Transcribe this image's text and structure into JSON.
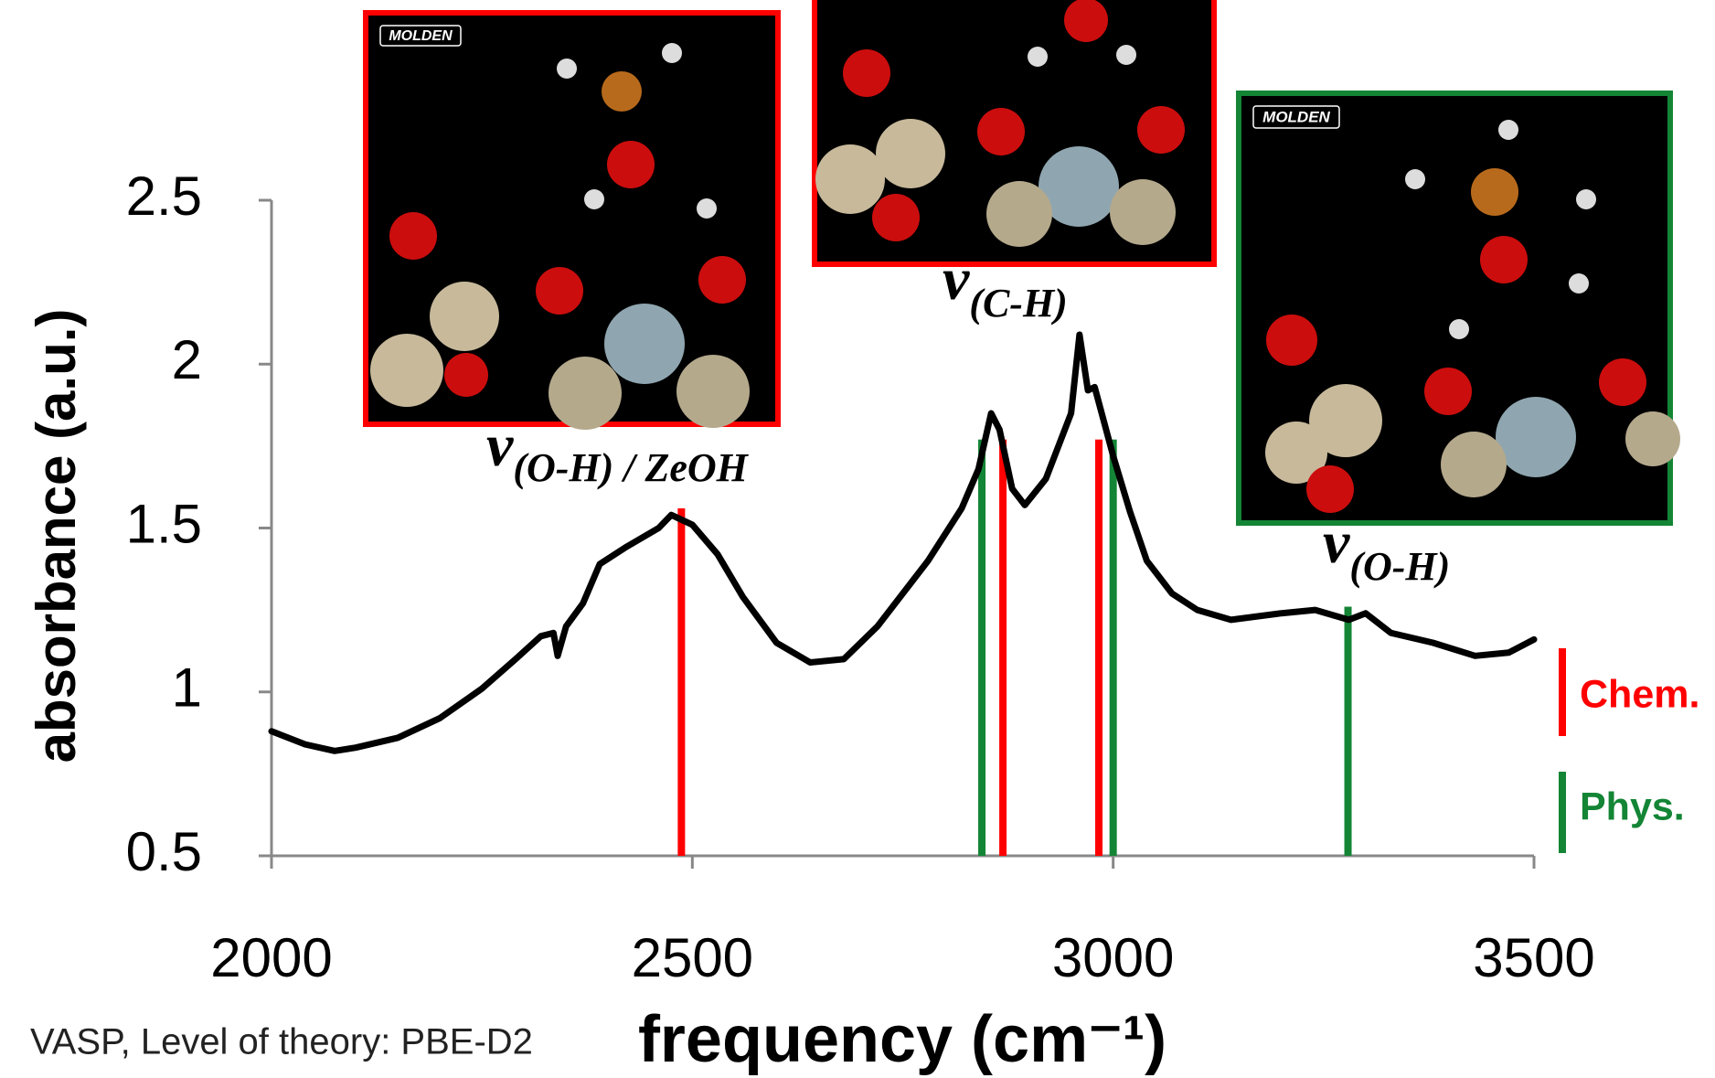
{
  "chart_data": {
    "type": "line",
    "x_label": "frequency (cm⁻¹)",
    "y_label": "absorbance (a.u.)",
    "footnote": "VASP, Level of theory: PBE-D2",
    "xlim": [
      2000,
      3500
    ],
    "ylim": [
      0.5,
      2.5
    ],
    "xticks": [
      2000,
      2500,
      3000,
      3500
    ],
    "yticks": [
      0.5,
      1,
      1.5,
      2,
      2.5
    ],
    "series": [
      {
        "color": "#000000",
        "x": [
          2000,
          2040,
          2075,
          2100,
          2150,
          2200,
          2250,
          2290,
          2320,
          2335,
          2340,
          2350,
          2370,
          2390,
          2420,
          2460,
          2475,
          2500,
          2530,
          2560,
          2600,
          2640,
          2680,
          2720,
          2780,
          2820,
          2840,
          2855,
          2865,
          2880,
          2895,
          2920,
          2950,
          2960,
          2970,
          2978,
          3000,
          3020,
          3040,
          3070,
          3100,
          3140,
          3200,
          3240,
          3280,
          3300,
          3330,
          3380,
          3430,
          3470,
          3500
        ],
        "values": [
          0.88,
          0.84,
          0.82,
          0.83,
          0.86,
          0.92,
          1.01,
          1.1,
          1.17,
          1.18,
          1.11,
          1.2,
          1.27,
          1.39,
          1.44,
          1.5,
          1.54,
          1.51,
          1.42,
          1.29,
          1.15,
          1.09,
          1.1,
          1.2,
          1.4,
          1.56,
          1.68,
          1.85,
          1.8,
          1.62,
          1.57,
          1.65,
          1.85,
          2.09,
          1.92,
          1.93,
          1.72,
          1.55,
          1.4,
          1.3,
          1.25,
          1.22,
          1.24,
          1.25,
          1.22,
          1.24,
          1.18,
          1.15,
          1.11,
          1.12,
          1.16
        ]
      }
    ],
    "sticks": [
      {
        "name": "Chem.",
        "color": "#ff0000",
        "x": [
          2487,
          2869,
          2983
        ],
        "values": [
          1.56,
          1.77,
          1.77
        ]
      },
      {
        "name": "Phys.",
        "color": "#138535",
        "x": [
          2844,
          3000,
          3279
        ],
        "values": [
          1.77,
          1.77,
          1.26
        ]
      }
    ],
    "annotations": [
      {
        "symbol": "v",
        "subscript": "(O-H) / ZeOH"
      },
      {
        "symbol": "v",
        "subscript": "(C-H)"
      },
      {
        "symbol": "v",
        "subscript": "(O-H)"
      }
    ],
    "inset_labels": [
      "MOLDEN",
      "MOLDEN"
    ]
  }
}
